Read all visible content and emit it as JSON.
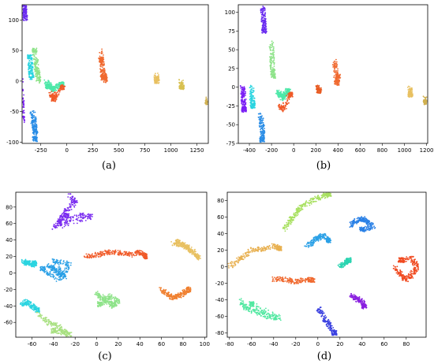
{
  "chart_data": [
    {
      "type": "scatter",
      "panel_label": "(a)",
      "title": "",
      "xlabel": "",
      "ylabel": "",
      "xlim": [
        -430,
        1360
      ],
      "ylim": [
        -102,
        125
      ],
      "xticks": [
        -250,
        0,
        250,
        500,
        750,
        1000,
        1250
      ],
      "yticks": [
        -100,
        -50,
        0,
        50,
        100
      ],
      "grid": false,
      "clusters": [
        {
          "color": "#6a2cf0",
          "points": [
            [
              -410,
              120
            ],
            [
              -405,
              110
            ],
            [
              -400,
              102
            ],
            [
              -408,
              125
            ]
          ]
        },
        {
          "color": "#7a1ff5",
          "points": [
            [
              -440,
              -10
            ],
            [
              -435,
              -30
            ],
            [
              -430,
              -50
            ],
            [
              -428,
              -70
            ],
            [
              -445,
              10
            ]
          ]
        },
        {
          "color": "#2a8de6",
          "points": [
            [
              -320,
              -60
            ],
            [
              -310,
              -75
            ],
            [
              -300,
              -85
            ],
            [
              -330,
              -50
            ],
            [
              -305,
              -95
            ]
          ]
        },
        {
          "color": "#2ad4e0",
          "points": [
            [
              -350,
              30
            ],
            [
              -345,
              15
            ],
            [
              -340,
              5
            ],
            [
              -355,
              40
            ]
          ]
        },
        {
          "color": "#8fe38a",
          "points": [
            [
              -300,
              40
            ],
            [
              -290,
              20
            ],
            [
              -280,
              10
            ],
            [
              -270,
              0
            ],
            [
              -310,
              50
            ]
          ]
        },
        {
          "color": "#4de8a8",
          "points": [
            [
              -200,
              0
            ],
            [
              -180,
              -10
            ],
            [
              -160,
              -5
            ],
            [
              -140,
              -15
            ],
            [
              -100,
              -10
            ],
            [
              -50,
              -5
            ]
          ]
        },
        {
          "color": "#f05a28",
          "points": [
            [
              -150,
              -20
            ],
            [
              -130,
              -30
            ],
            [
              -120,
              -25
            ],
            [
              -40,
              -10
            ]
          ]
        },
        {
          "color": "#f06a30",
          "points": [
            [
              330,
              50
            ],
            [
              340,
              20
            ],
            [
              350,
              5
            ],
            [
              360,
              10
            ],
            [
              370,
              0
            ],
            [
              330,
              35
            ]
          ]
        },
        {
          "color": "#e8c060",
          "points": [
            [
              860,
              10
            ],
            [
              865,
              0
            ]
          ]
        },
        {
          "color": "#d8c050",
          "points": [
            [
              1100,
              0
            ],
            [
              1105,
              -10
            ]
          ]
        },
        {
          "color": "#d0b050",
          "points": [
            [
              1350,
              -30
            ],
            [
              1355,
              -35
            ]
          ]
        }
      ]
    },
    {
      "type": "scatter",
      "panel_label": "(b)",
      "title": "",
      "xlabel": "",
      "ylabel": "",
      "xlim": [
        -500,
        1210
      ],
      "ylim": [
        -75,
        110
      ],
      "xticks": [
        -400,
        -200,
        0,
        200,
        400,
        600,
        800,
        1000,
        1200
      ],
      "yticks": [
        -75,
        -50,
        -25,
        0,
        25,
        50,
        75,
        100
      ],
      "grid": false,
      "clusters": [
        {
          "color": "#6a2cf0",
          "points": [
            [
              -280,
              105
            ],
            [
              -275,
              95
            ],
            [
              -270,
              85
            ],
            [
              -265,
              75
            ]
          ]
        },
        {
          "color": "#7a1ff5",
          "points": [
            [
              -460,
              0
            ],
            [
              -455,
              -10
            ],
            [
              -450,
              -20
            ],
            [
              -448,
              -30
            ]
          ]
        },
        {
          "color": "#2a8de6",
          "points": [
            [
              -300,
              -35
            ],
            [
              -290,
              -50
            ],
            [
              -280,
              -60
            ],
            [
              -285,
              -70
            ]
          ]
        },
        {
          "color": "#2ad4e0",
          "points": [
            [
              -380,
              0
            ],
            [
              -375,
              -15
            ],
            [
              -370,
              -25
            ]
          ]
        },
        {
          "color": "#8fe38a",
          "points": [
            [
              -200,
              60
            ],
            [
              -195,
              40
            ],
            [
              -190,
              25
            ],
            [
              -185,
              15
            ]
          ]
        },
        {
          "color": "#4de8a8",
          "points": [
            [
              -150,
              -5
            ],
            [
              -120,
              -10
            ],
            [
              -100,
              -15
            ],
            [
              -80,
              -10
            ],
            [
              -50,
              -5
            ]
          ]
        },
        {
          "color": "#f05a28",
          "points": [
            [
              -120,
              -25
            ],
            [
              -100,
              -30
            ],
            [
              -30,
              -10
            ]
          ]
        },
        {
          "color": "#f06a30",
          "points": [
            [
              370,
              35
            ],
            [
              380,
              20
            ],
            [
              390,
              5
            ],
            [
              400,
              15
            ]
          ]
        },
        {
          "color": "#e85a20",
          "points": [
            [
              220,
              0
            ],
            [
              230,
              -5
            ]
          ]
        },
        {
          "color": "#e8c060",
          "points": [
            [
              1050,
              0
            ],
            [
              1055,
              -10
            ]
          ]
        },
        {
          "color": "#d0b050",
          "points": [
            [
              1190,
              -15
            ],
            [
              1195,
              -20
            ]
          ]
        }
      ]
    },
    {
      "type": "scatter",
      "panel_label": "(c)",
      "title": "",
      "xlabel": "",
      "ylabel": "",
      "xlim": [
        -75,
        102
      ],
      "ylim": [
        -78,
        98
      ],
      "xticks": [
        -60,
        -40,
        -20,
        0,
        20,
        40,
        60,
        80,
        100
      ],
      "yticks": [
        -60,
        -40,
        -20,
        0,
        20,
        40,
        60,
        80
      ],
      "grid": false,
      "clusters": [
        {
          "color": "#7a2cf0",
          "points": [
            [
              -25,
              95
            ],
            [
              -20,
              85
            ],
            [
              -30,
              75
            ],
            [
              -35,
              60
            ],
            [
              -15,
              70
            ],
            [
              -5,
              68
            ],
            [
              -40,
              55
            ],
            [
              -28,
              70
            ]
          ]
        },
        {
          "color": "#2aa0e6",
          "points": [
            [
              -45,
              10
            ],
            [
              -40,
              5
            ],
            [
              -35,
              0
            ],
            [
              -30,
              -5
            ],
            [
              -40,
              15
            ],
            [
              -25,
              10
            ],
            [
              -35,
              -8
            ],
            [
              -50,
              5
            ]
          ]
        },
        {
          "color": "#2ad4e0",
          "points": [
            [
              -70,
              15
            ],
            [
              -60,
              10
            ],
            [
              -55,
              12
            ],
            [
              -65,
              12
            ]
          ]
        },
        {
          "color": "#f05a28",
          "points": [
            [
              -10,
              20
            ],
            [
              0,
              22
            ],
            [
              10,
              25
            ],
            [
              20,
              25
            ],
            [
              30,
              22
            ],
            [
              40,
              25
            ],
            [
              45,
              20
            ]
          ]
        },
        {
          "color": "#e8c060",
          "points": [
            [
              70,
              35
            ],
            [
              80,
              35
            ],
            [
              85,
              30
            ],
            [
              90,
              25
            ],
            [
              95,
              18
            ],
            [
              75,
              38
            ]
          ]
        },
        {
          "color": "#f08030",
          "points": [
            [
              60,
              -20
            ],
            [
              65,
              -25
            ],
            [
              70,
              -30
            ],
            [
              75,
              -28
            ],
            [
              80,
              -25
            ],
            [
              85,
              -20
            ]
          ]
        },
        {
          "color": "#8fe38a",
          "points": [
            [
              0,
              -25
            ],
            [
              5,
              -30
            ],
            [
              10,
              -35
            ],
            [
              15,
              -40
            ],
            [
              20,
              -35
            ],
            [
              12,
              -28
            ],
            [
              3,
              -38
            ]
          ]
        },
        {
          "color": "#2ad4e0",
          "points": [
            [
              -70,
              -40
            ],
            [
              -65,
              -35
            ],
            [
              -60,
              -40
            ],
            [
              -55,
              -45
            ]
          ]
        },
        {
          "color": "#a8e080",
          "points": [
            [
              -55,
              -50
            ],
            [
              -45,
              -60
            ],
            [
              -35,
              -65
            ],
            [
              -30,
              -72
            ],
            [
              -25,
              -75
            ],
            [
              -40,
              -70
            ]
          ]
        }
      ]
    },
    {
      "type": "scatter",
      "panel_label": "(d)",
      "title": "",
      "xlabel": "",
      "ylabel": "",
      "xlim": [
        -82,
        98
      ],
      "ylim": [
        -85,
        90
      ],
      "xticks": [
        -80,
        -60,
        -40,
        -20,
        0,
        20,
        40,
        60,
        80
      ],
      "yticks": [
        -80,
        -60,
        -40,
        -20,
        0,
        20,
        40,
        60,
        80
      ],
      "grid": false,
      "clusters": [
        {
          "color": "#a8e060",
          "points": [
            [
              -30,
              45
            ],
            [
              -25,
              55
            ],
            [
              -20,
              65
            ],
            [
              -15,
              72
            ],
            [
              -5,
              80
            ],
            [
              5,
              85
            ],
            [
              10,
              88
            ]
          ]
        },
        {
          "color": "#e8b050",
          "points": [
            [
              -80,
              0
            ],
            [
              -70,
              10
            ],
            [
              -60,
              20
            ],
            [
              -50,
              22
            ],
            [
              -40,
              25
            ],
            [
              -35,
              22
            ]
          ]
        },
        {
          "color": "#2aa0e6",
          "points": [
            [
              -10,
              25
            ],
            [
              -5,
              30
            ],
            [
              0,
              35
            ],
            [
              5,
              38
            ],
            [
              10,
              32
            ]
          ]
        },
        {
          "color": "#2a80e6",
          "points": [
            [
              30,
              50
            ],
            [
              35,
              55
            ],
            [
              40,
              58
            ],
            [
              45,
              55
            ],
            [
              50,
              48
            ],
            [
              40,
              45
            ]
          ]
        },
        {
          "color": "#2ad4b0",
          "points": [
            [
              20,
              0
            ],
            [
              25,
              5
            ],
            [
              28,
              8
            ]
          ]
        },
        {
          "color": "#f06a30",
          "points": [
            [
              -40,
              -15
            ],
            [
              -30,
              -15
            ],
            [
              -20,
              -18
            ],
            [
              -10,
              -15
            ],
            [
              -5,
              -16
            ]
          ]
        },
        {
          "color": "#f04a20",
          "points": [
            [
              70,
              0
            ],
            [
              75,
              -10
            ],
            [
              80,
              -15
            ],
            [
              85,
              -10
            ],
            [
              90,
              0
            ],
            [
              85,
              10
            ],
            [
              75,
              8
            ]
          ]
        },
        {
          "color": "#50e8a0",
          "points": [
            [
              -70,
              -40
            ],
            [
              -65,
              -50
            ],
            [
              -55,
              -55
            ],
            [
              -45,
              -60
            ],
            [
              -35,
              -62
            ],
            [
              -60,
              -45
            ]
          ]
        },
        {
          "color": "#3a40e0",
          "points": [
            [
              0,
              -50
            ],
            [
              5,
              -60
            ],
            [
              10,
              -70
            ],
            [
              15,
              -80
            ]
          ]
        },
        {
          "color": "#8a20e0",
          "points": [
            [
              30,
              -35
            ],
            [
              35,
              -38
            ],
            [
              40,
              -42
            ],
            [
              42,
              -48
            ]
          ]
        }
      ]
    }
  ]
}
